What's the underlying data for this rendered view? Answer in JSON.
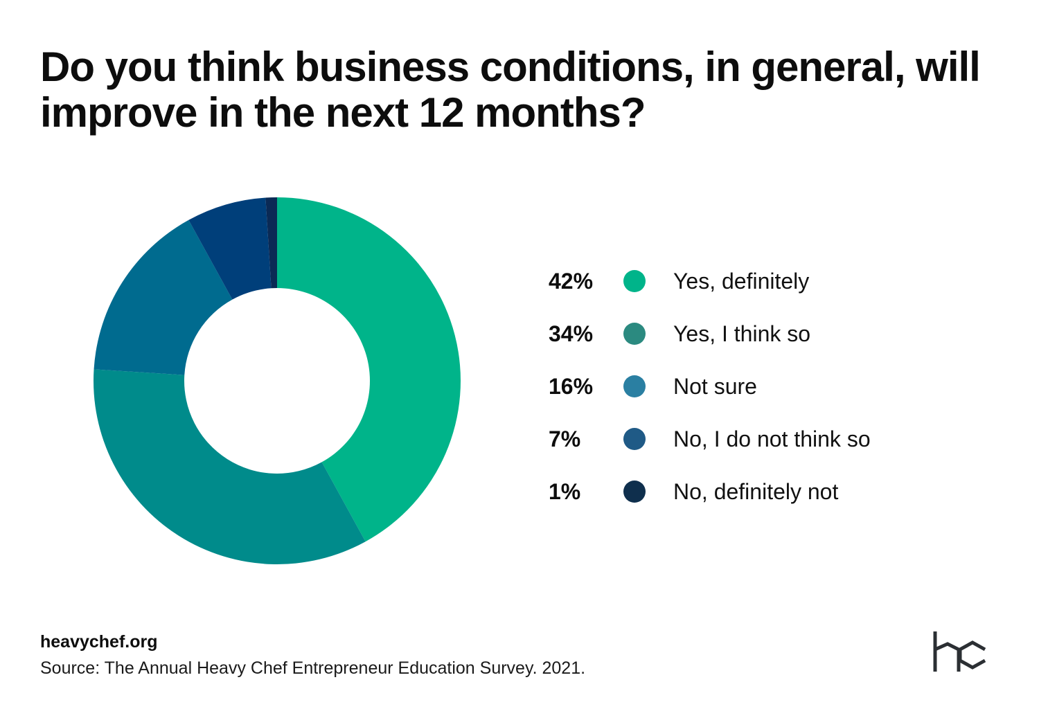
{
  "title": "Do you think business conditions, in general, will improve in the next 12 months?",
  "chart_data": {
    "type": "pie",
    "donut": true,
    "title": "Do you think business conditions, in general, will improve in the next 12 months?",
    "slices": [
      {
        "label": "Yes, definitely",
        "value": 42,
        "pct_text": "42%",
        "color": "#00b48a"
      },
      {
        "label": "Yes, I think so",
        "value": 34,
        "pct_text": "34%",
        "color": "#008b8b"
      },
      {
        "label": "Not sure",
        "value": 16,
        "pct_text": "16%",
        "color": "#006b8f"
      },
      {
        "label": "No, I do not think so",
        "value": 7,
        "pct_text": "7%",
        "color": "#003f7a"
      },
      {
        "label": "No, definitely not",
        "value": 1,
        "pct_text": "1%",
        "color": "#0b2a55"
      }
    ],
    "legend_colors": [
      "#00b48a",
      "#2b8a80",
      "#2a7fa2",
      "#1f5a86",
      "#0f2f4d"
    ],
    "legend_position": "right"
  },
  "footer": {
    "site": "heavychef.org",
    "source": "Source: The Annual Heavy Chef Entrepreneur Education Survey. 2021."
  },
  "logo": {
    "icon": "hc-logo-icon",
    "color": "#2b2f33"
  }
}
